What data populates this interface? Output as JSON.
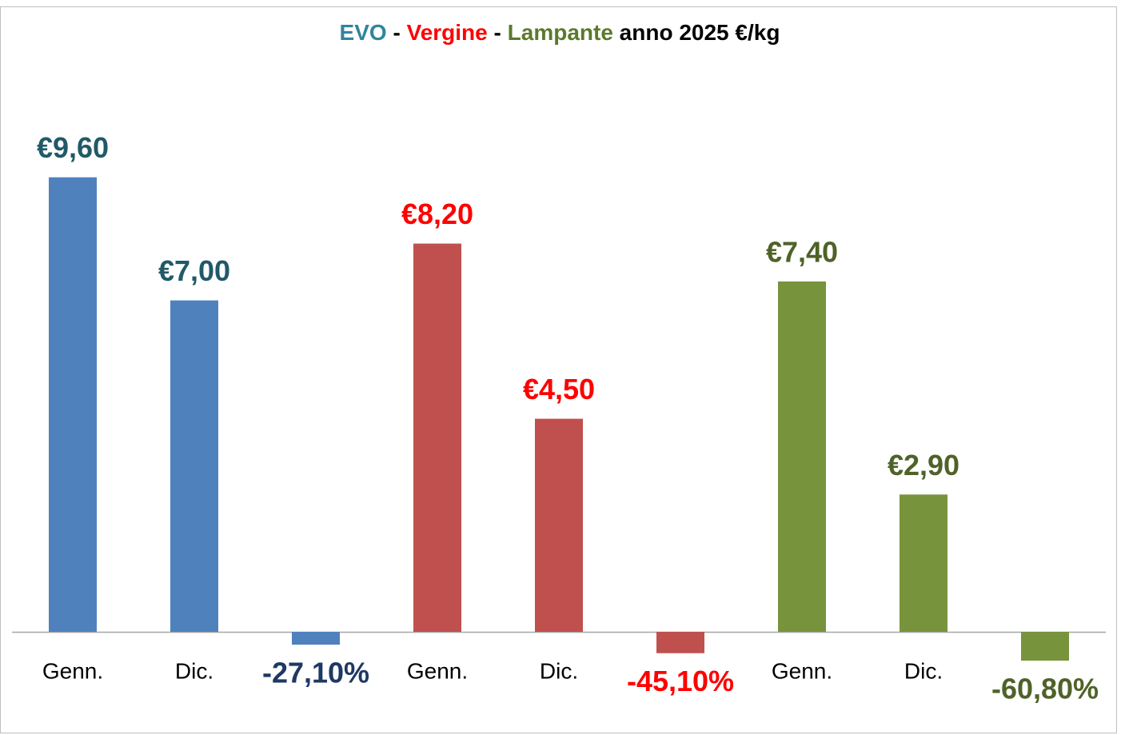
{
  "chart_data": {
    "type": "bar",
    "title_parts": [
      "EVO",
      " - ",
      "Vergine",
      " - ",
      "Lampante",
      " anno 2025 €/kg"
    ],
    "title_colors": [
      "#31859c",
      "#000000",
      "#ff0000",
      "#000000",
      "#5b7a2b",
      "#000000"
    ],
    "categories": [
      "Genn.",
      "Dic.",
      null,
      "Genn.",
      "Dic.",
      null,
      "Genn.",
      "Dic.",
      null
    ],
    "values": [
      9.6,
      7.0,
      -0.271,
      8.2,
      4.5,
      -0.451,
      7.4,
      2.9,
      -0.608
    ],
    "value_labels": [
      "€9,60",
      "€7,00",
      "-27,10%",
      "€8,20",
      "€4,50",
      "-45,10%",
      "€7,40",
      "€2,90",
      "-60,80%"
    ],
    "bar_colors": [
      "#4f81bd",
      "#4f81bd",
      "#4f81bd",
      "#c0504d",
      "#c0504d",
      "#c0504d",
      "#77933c",
      "#77933c",
      "#77933c"
    ],
    "label_colors": [
      "#215968",
      "#215968",
      "#1f3864",
      "#ff0000",
      "#ff0000",
      "#ff0000",
      "#4f6228",
      "#4f6228",
      "#4f6228"
    ],
    "ylim": [
      -0.8,
      11
    ],
    "grid": false
  }
}
